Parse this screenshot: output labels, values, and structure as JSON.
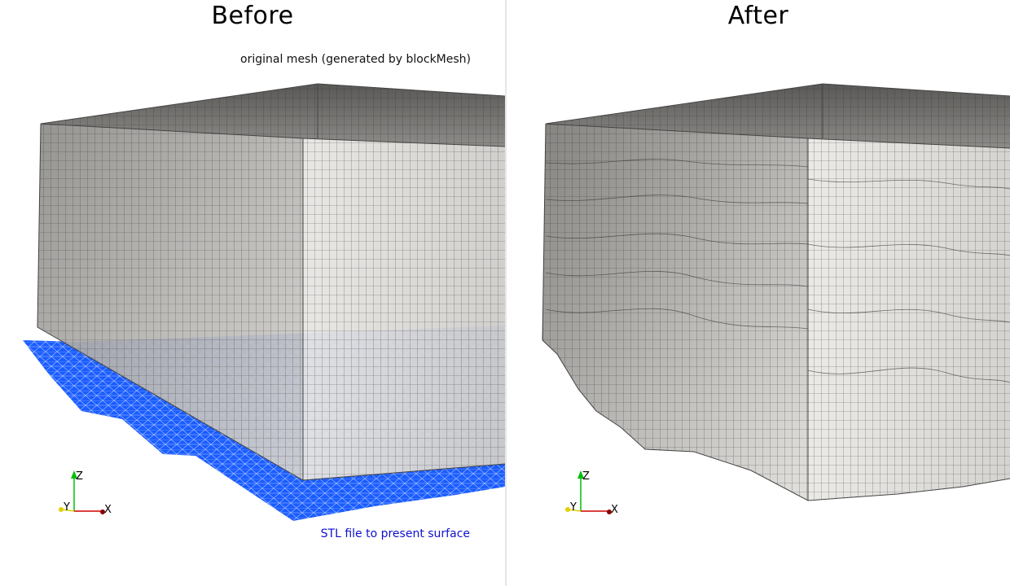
{
  "left_panel": {
    "title": "Before",
    "top_annotation": "original mesh (generated by blockMesh)",
    "bottom_annotation": "STL file to present surface",
    "bottom_annotation_color": "#1010d0",
    "stl_surface_color": "#1a5cff"
  },
  "right_panel": {
    "title": "After"
  },
  "axes_labels": {
    "x": "X",
    "y": "Y",
    "z": "Z"
  },
  "axes_colors": {
    "x": "#d00000",
    "y": "#e0d000",
    "z": "#00c000"
  },
  "mesh_colors": {
    "face_light": "#e4e2df",
    "face_mid": "#b8b6b3",
    "face_dark": "#6e6c69",
    "edge": "#3a3a3a"
  }
}
